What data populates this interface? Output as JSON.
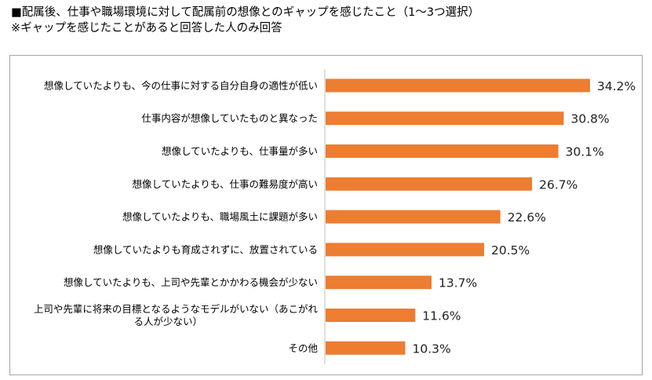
{
  "title": {
    "line1": "■配属後、仕事や職場環境に対して配属前の想像とのギャップを感じたこと（1～3つ選択）",
    "line2": "※ギャップを感じたことがあると回答した人のみ回答"
  },
  "chart_data": {
    "type": "bar",
    "orientation": "horizontal",
    "categories": [
      "想像していたよりも、今の仕事に対する自分自身の適性が低い",
      "仕事内容が想像していたものと異なった",
      "想像していたよりも、仕事量が多い",
      "想像していたよりも、仕事の難易度が高い",
      "想像していたよりも、職場風土に課題が多い",
      "想像していたよりも育成されずに、放置されている",
      "想像していたよりも、上司や先輩とかかわる機会が少ない",
      [
        "上司や先輩に将来の目標となるようなモデルがいない（あこがれ",
        "る人が少ない）"
      ],
      "その他"
    ],
    "values": [
      34.2,
      30.8,
      30.1,
      26.7,
      22.6,
      20.5,
      13.7,
      11.6,
      10.3
    ],
    "data_labels": [
      "34.2%",
      "30.8%",
      "30.1%",
      "26.7%",
      "22.6%",
      "20.5%",
      "13.7%",
      "11.6%",
      "10.3%"
    ],
    "unit": "%",
    "xlim": [
      0,
      40
    ],
    "bar_color": "#ed7d31",
    "grid": false
  }
}
